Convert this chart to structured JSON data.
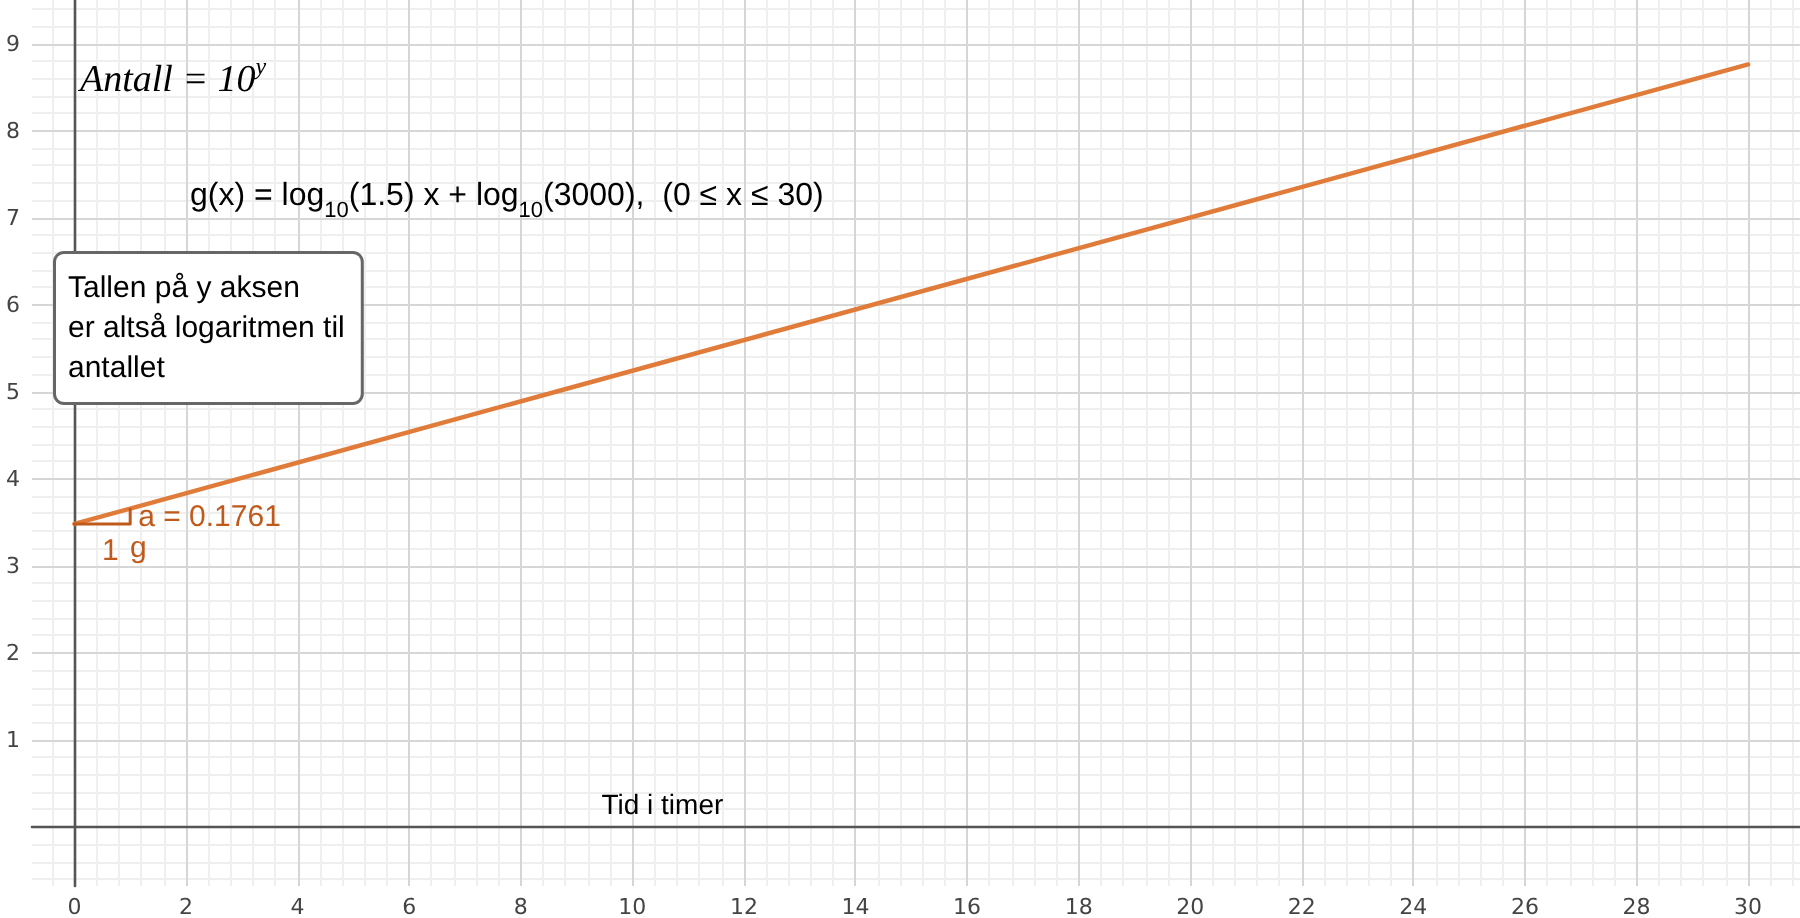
{
  "chart_data": {
    "type": "line",
    "xlabel": "Tid i timer",
    "annotations": [
      "Antall = 10$^{y}$",
      "g(x) = log$_{10}$(1.5) x + log$_{10}$(3000),  (0 ≤ x ≤ 30)",
      "Tallen på y aksen\ner altså logaritmen til\nantallet",
      {
        "text": "a = 0.1761",
        "x": 1,
        "y": 3.56
      },
      {
        "text": "1",
        "x": 0.5,
        "y": 3.48
      }
    ],
    "series": [
      {
        "name": "g",
        "color": "#e07b39",
        "x": [
          0,
          30
        ],
        "values": [
          3.48,
          8.76
        ]
      },
      {
        "color": "#c05a1c",
        "x": [
          0,
          1,
          1
        ],
        "values": [
          3.48,
          3.48,
          3.65
        ]
      }
    ],
    "xlim": [
      -0.76,
      30.93
    ],
    "ylim": [
      -0.68,
      9.5
    ],
    "xticks": [
      0,
      2,
      4,
      6,
      8,
      10,
      12,
      14,
      16,
      18,
      20,
      22,
      24,
      26,
      28,
      30
    ],
    "yticks": [
      1,
      2,
      3,
      4,
      5,
      6,
      7,
      8,
      9
    ],
    "grid": true,
    "marker": "none",
    "line_style": "solid"
  }
}
